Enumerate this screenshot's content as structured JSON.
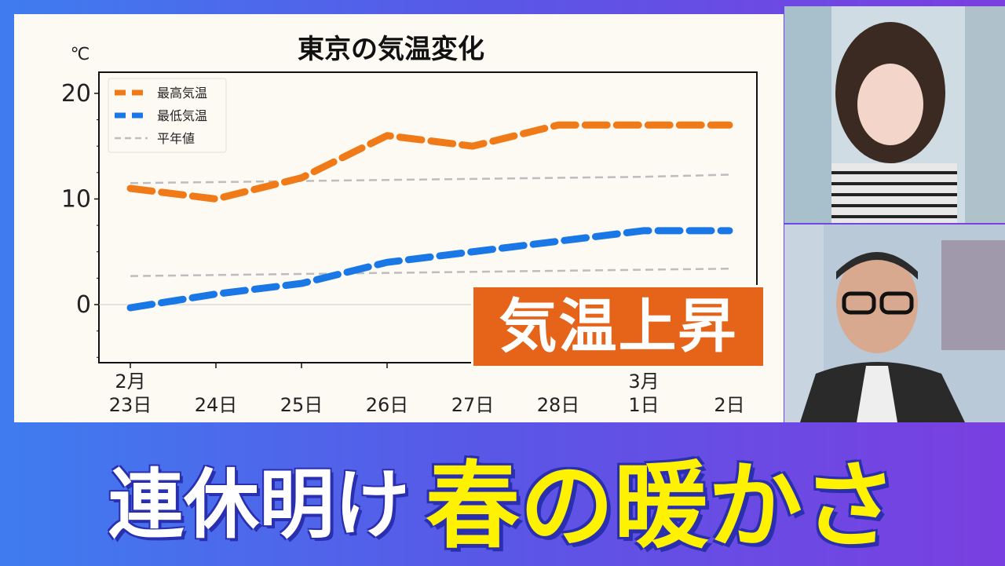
{
  "colors": {
    "accent_orange": "#f07a18",
    "accent_blue": "#1a78e6",
    "normal_gray": "#bdbdbd",
    "badge_bg": "#e5641a",
    "headline_yellow": "#fff200"
  },
  "badge": {
    "text": "気温上昇"
  },
  "headline": {
    "part1": "連休明け",
    "part2": "春の暖かさ"
  },
  "chart_data": {
    "type": "line",
    "title": "東京の気温変化",
    "ylabel": "℃",
    "xlabel": "",
    "ylim": [
      -5.5,
      22
    ],
    "yticks": [
      0,
      10,
      20
    ],
    "grid": false,
    "legend_position": "top-left",
    "categories": [
      [
        "2月",
        "23日"
      ],
      [
        "",
        "24日"
      ],
      [
        "",
        "25日"
      ],
      [
        "",
        "26日"
      ],
      [
        "",
        "27日"
      ],
      [
        "",
        "28日"
      ],
      [
        "3月",
        "1日"
      ],
      [
        "",
        "2日"
      ]
    ],
    "series": [
      {
        "name": "最高気温",
        "color": "#f07a18",
        "style": "dashed",
        "values": [
          11,
          10,
          12,
          16,
          15,
          17,
          17,
          17
        ]
      },
      {
        "name": "最低気温",
        "color": "#1a78e6",
        "style": "dashed",
        "values": [
          -0.3,
          1,
          2,
          4,
          5,
          6,
          7,
          7
        ]
      },
      {
        "name": "平年値",
        "color": "#bdbdbd",
        "style": "thin-dashed",
        "lines": [
          {
            "values": [
              11.5,
              11.6,
              11.7,
              11.8,
              11.9,
              12.0,
              12.1,
              12.3
            ]
          },
          {
            "values": [
              2.7,
              2.8,
              2.9,
              3.0,
              3.1,
              3.2,
              3.3,
              3.4
            ]
          }
        ]
      }
    ]
  }
}
